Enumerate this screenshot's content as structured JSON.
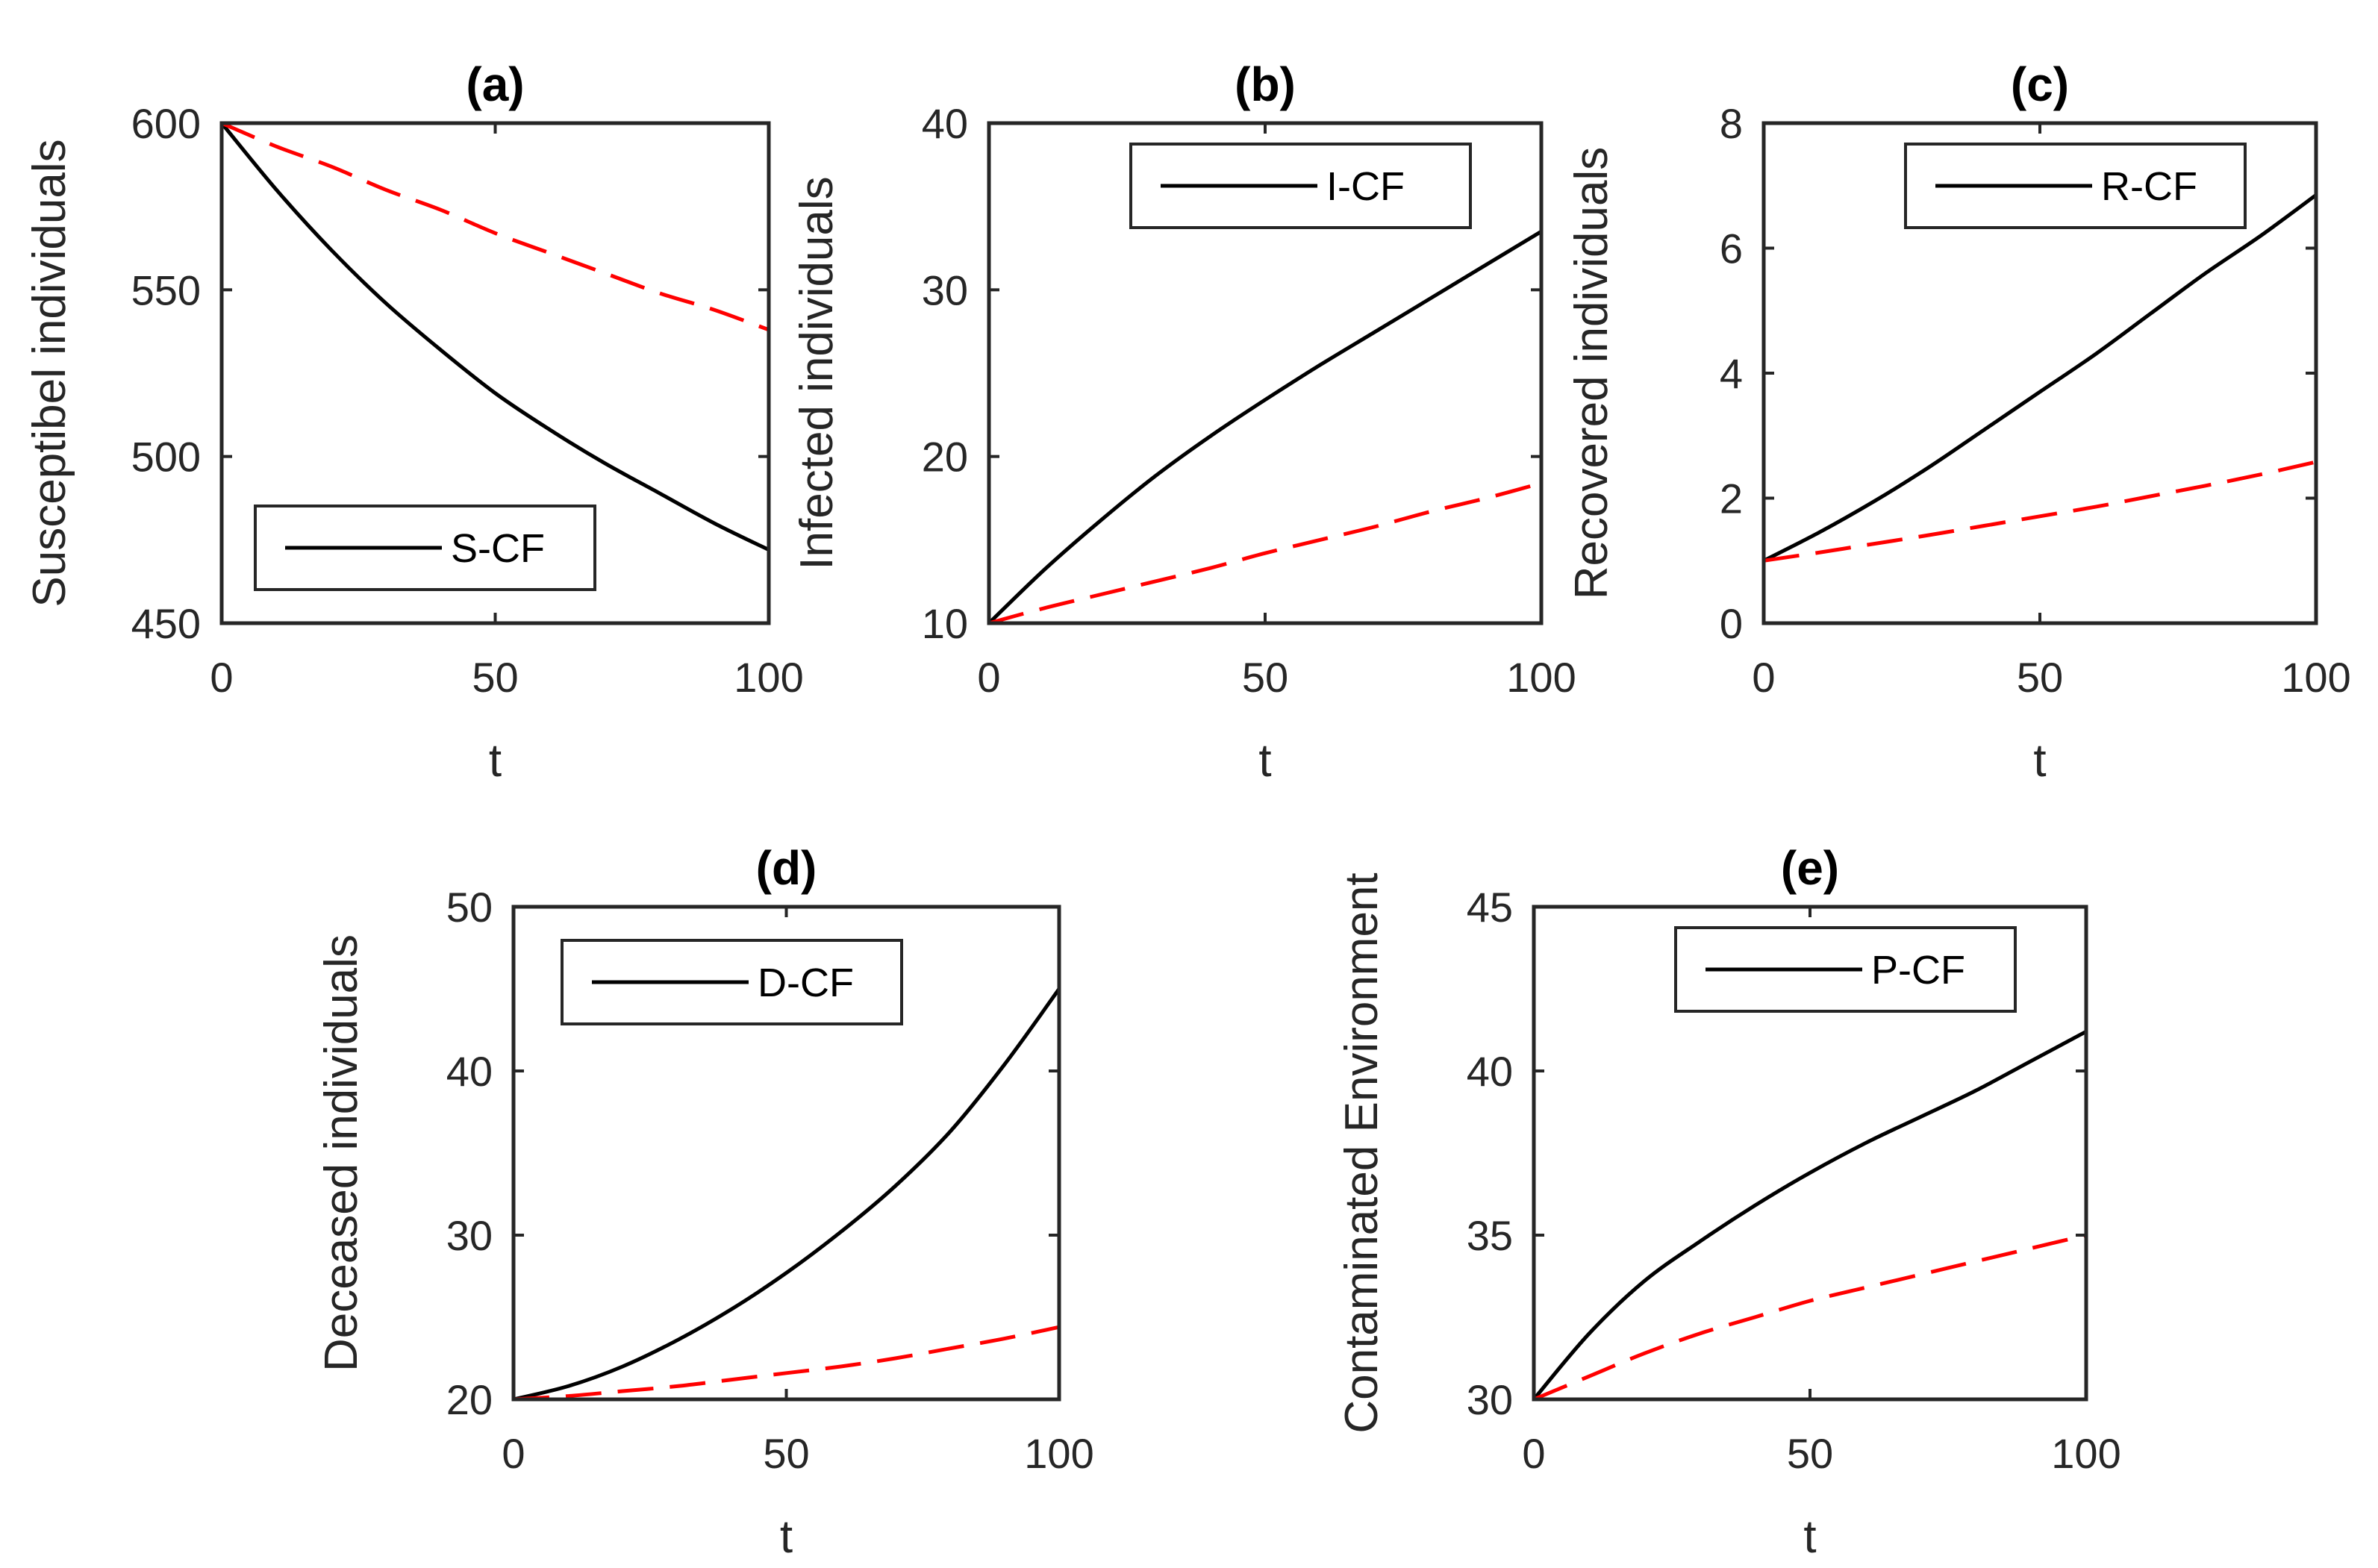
{
  "chart_data": [
    {
      "id": "a",
      "type": "line",
      "title": "(a)",
      "xlabel": "t",
      "ylabel": "Susceptibel individuals",
      "xlim": [
        0,
        100
      ],
      "ylim": [
        450,
        600
      ],
      "xticks": [
        0,
        50,
        100
      ],
      "yticks": [
        450,
        500,
        550,
        600
      ],
      "legend": {
        "position": "bottom-left",
        "entries": [
          "S-CF"
        ]
      },
      "grid": false,
      "x": [
        0,
        10,
        20,
        30,
        40,
        50,
        60,
        70,
        80,
        90,
        100
      ],
      "series": [
        {
          "name": "S-CF",
          "color": "#000000",
          "dash": "solid",
          "values": [
            600,
            580,
            562,
            546,
            532,
            519,
            508,
            498,
            489,
            480,
            472
          ]
        },
        {
          "name": "dashed",
          "color": "#ff0000",
          "dash": "dashed",
          "values": [
            600,
            593,
            587,
            580,
            574,
            567,
            561,
            555,
            549,
            544,
            538
          ]
        }
      ]
    },
    {
      "id": "b",
      "type": "line",
      "title": "(b)",
      "xlabel": "t",
      "ylabel": "Infected individuals",
      "xlim": [
        0,
        100
      ],
      "ylim": [
        10,
        40
      ],
      "xticks": [
        0,
        50,
        100
      ],
      "yticks": [
        10,
        20,
        30,
        40
      ],
      "legend": {
        "position": "top-right",
        "entries": [
          "I-CF"
        ]
      },
      "grid": false,
      "x": [
        0,
        10,
        20,
        30,
        40,
        50,
        60,
        70,
        80,
        90,
        100
      ],
      "series": [
        {
          "name": "I-CF",
          "color": "#000000",
          "dash": "solid",
          "values": [
            10,
            13.2,
            16.1,
            18.8,
            21.2,
            23.4,
            25.5,
            27.5,
            29.5,
            31.5,
            33.5
          ]
        },
        {
          "name": "dashed",
          "color": "#ff0000",
          "dash": "dashed",
          "values": [
            10,
            10.9,
            11.7,
            12.5,
            13.3,
            14.2,
            15.0,
            15.8,
            16.7,
            17.5,
            18.4
          ]
        }
      ]
    },
    {
      "id": "c",
      "type": "line",
      "title": "(c)",
      "xlabel": "t",
      "ylabel": "Recovered individuals",
      "xlim": [
        0,
        100
      ],
      "ylim": [
        0,
        8
      ],
      "xticks": [
        0,
        50,
        100
      ],
      "yticks": [
        0,
        2,
        4,
        6,
        8
      ],
      "legend": {
        "position": "top-right",
        "entries": [
          "R-CF"
        ]
      },
      "grid": false,
      "x": [
        0,
        10,
        20,
        30,
        40,
        50,
        60,
        70,
        80,
        90,
        100
      ],
      "series": [
        {
          "name": "R-CF",
          "color": "#000000",
          "dash": "solid",
          "values": [
            1.0,
            1.45,
            1.95,
            2.5,
            3.1,
            3.7,
            4.3,
            4.95,
            5.6,
            6.2,
            6.85
          ]
        },
        {
          "name": "dashed",
          "color": "#ff0000",
          "dash": "dashed",
          "values": [
            1.0,
            1.13,
            1.27,
            1.41,
            1.56,
            1.71,
            1.86,
            2.03,
            2.2,
            2.38,
            2.58
          ]
        }
      ]
    },
    {
      "id": "d",
      "type": "line",
      "title": "(d)",
      "xlabel": "t",
      "ylabel": "Deceased individuals",
      "xlim": [
        0,
        100
      ],
      "ylim": [
        20,
        50
      ],
      "xticks": [
        0,
        50,
        100
      ],
      "yticks": [
        20,
        30,
        40,
        50
      ],
      "legend": {
        "position": "top-left",
        "entries": [
          "D-CF"
        ]
      },
      "grid": false,
      "x": [
        0,
        10,
        20,
        30,
        40,
        50,
        60,
        70,
        80,
        90,
        100
      ],
      "series": [
        {
          "name": "D-CF",
          "color": "#000000",
          "dash": "solid",
          "values": [
            20,
            20.8,
            22.0,
            23.6,
            25.5,
            27.7,
            30.2,
            33.0,
            36.3,
            40.4,
            45.0
          ]
        },
        {
          "name": "dashed",
          "color": "#ff0000",
          "dash": "dashed",
          "values": [
            20,
            20.2,
            20.5,
            20.8,
            21.2,
            21.6,
            22.0,
            22.5,
            23.1,
            23.7,
            24.4
          ]
        }
      ]
    },
    {
      "id": "e",
      "type": "line",
      "title": "(e)",
      "xlabel": "t",
      "ylabel": "Contaminated Environment",
      "xlim": [
        0,
        100
      ],
      "ylim": [
        30,
        45
      ],
      "xticks": [
        0,
        50,
        100
      ],
      "yticks": [
        30,
        35,
        40,
        45
      ],
      "legend": {
        "position": "top-right",
        "entries": [
          "P-CF"
        ]
      },
      "grid": false,
      "x": [
        0,
        10,
        20,
        30,
        40,
        50,
        60,
        70,
        80,
        90,
        100
      ],
      "series": [
        {
          "name": "P-CF",
          "color": "#000000",
          "dash": "solid",
          "values": [
            30,
            32.0,
            33.6,
            34.8,
            35.9,
            36.9,
            37.8,
            38.6,
            39.4,
            40.3,
            41.2
          ]
        },
        {
          "name": "dashed",
          "color": "#ff0000",
          "dash": "dashed",
          "values": [
            30,
            30.7,
            31.4,
            32.0,
            32.5,
            33.0,
            33.4,
            33.8,
            34.2,
            34.6,
            35.0
          ]
        }
      ]
    }
  ]
}
